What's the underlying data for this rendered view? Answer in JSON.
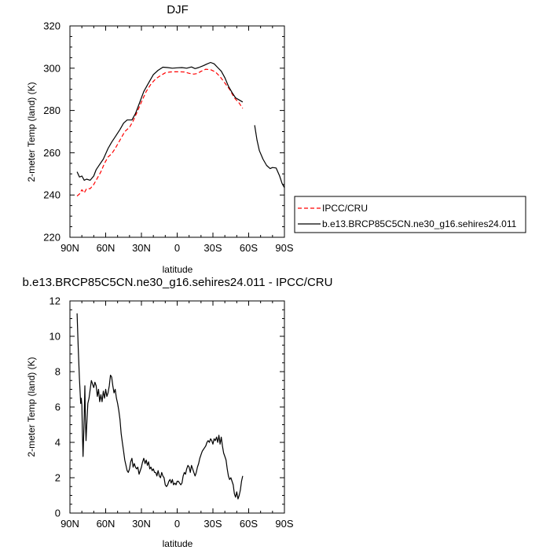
{
  "chart_data": [
    {
      "type": "line",
      "title": "DJF",
      "xlabel": "latitude",
      "ylabel": "2-meter Temp (land) (K)",
      "xlim": [
        90,
        -90
      ],
      "ylim": [
        220,
        320
      ],
      "xticks": [
        90,
        60,
        30,
        0,
        -30,
        -60,
        -90
      ],
      "xtick_labels": [
        "90N",
        "60N",
        "30N",
        "0",
        "30S",
        "60S",
        "90S"
      ],
      "yticks": [
        220,
        240,
        260,
        280,
        300,
        320
      ],
      "ytick_labels": [
        "220",
        "240",
        "260",
        "280",
        "300",
        "320"
      ],
      "legend": "right",
      "series": [
        {
          "name": "IPCC/CRU",
          "color": "#ff0000",
          "dash": "dashed",
          "segments": [
            [
              [
                84,
                239.5
              ],
              [
                82,
                240.5
              ],
              [
                80,
                242.5
              ],
              [
                78,
                241
              ],
              [
                76,
                243
              ],
              [
                73,
                243
              ],
              [
                70,
                245
              ],
              [
                67,
                248
              ],
              [
                64,
                251
              ],
              [
                61,
                255
              ],
              [
                58,
                258
              ],
              [
                55,
                259.5
              ],
              [
                52,
                262
              ],
              [
                48,
                266
              ],
              [
                44,
                270
              ],
              [
                40,
                272
              ],
              [
                37,
                275
              ],
              [
                33,
                280
              ],
              [
                30,
                284
              ],
              [
                26,
                289
              ],
              [
                22,
                292.5
              ],
              [
                18,
                295
              ],
              [
                14,
                296.5
              ],
              [
                10,
                297.8
              ],
              [
                6,
                298.2
              ],
              [
                2,
                298.3
              ],
              [
                -2,
                298.3
              ],
              [
                -6,
                298.2
              ],
              [
                -10,
                297.6
              ],
              [
                -14,
                297.2
              ],
              [
                -17,
                297.5
              ],
              [
                -20,
                298.5
              ],
              [
                -24,
                299.5
              ],
              [
                -28,
                299.3
              ],
              [
                -32,
                298.3
              ],
              [
                -36,
                296
              ],
              [
                -40,
                293
              ],
              [
                -44,
                290
              ],
              [
                -48,
                286
              ],
              [
                -52,
                283.5
              ],
              [
                -55,
                281
              ]
            ]
          ]
        },
        {
          "name": "b.e13.BRCP85C5CN.ne30_g16.sehires24.011",
          "color": "#000000",
          "dash": "solid",
          "segments": [
            [
              [
                84,
                251
              ],
              [
                82,
                248.5
              ],
              [
                80,
                249
              ],
              [
                78,
                247
              ],
              [
                76,
                247.5
              ],
              [
                73,
                247
              ],
              [
                70,
                249
              ],
              [
                68,
                252
              ],
              [
                65,
                254.5
              ],
              [
                62,
                257
              ],
              [
                58,
                262
              ],
              [
                55,
                265
              ],
              [
                52,
                267.5
              ],
              [
                48,
                271
              ],
              [
                45,
                274
              ],
              [
                42,
                275.5
              ],
              [
                38,
                275.5
              ],
              [
                35,
                278.5
              ],
              [
                32,
                283
              ],
              [
                28,
                289
              ],
              [
                24,
                293
              ],
              [
                20,
                297
              ],
              [
                16,
                299
              ],
              [
                12,
                300.5
              ],
              [
                8,
                300.3
              ],
              [
                4,
                300
              ],
              [
                0,
                300.2
              ],
              [
                -4,
                300.3
              ],
              [
                -8,
                300
              ],
              [
                -12,
                300.6
              ],
              [
                -15,
                299.8
              ],
              [
                -18,
                300.3
              ],
              [
                -22,
                301.2
              ],
              [
                -25,
                302
              ],
              [
                -28,
                302.7
              ],
              [
                -31,
                302.1
              ],
              [
                -34,
                300.3
              ],
              [
                -37,
                298.6
              ],
              [
                -40,
                295.5
              ],
              [
                -43,
                291.5
              ],
              [
                -46,
                288.5
              ],
              [
                -49,
                286
              ],
              [
                -52,
                285
              ],
              [
                -55,
                284
              ]
            ],
            [
              [
                -65,
                273
              ],
              [
                -67,
                266
              ],
              [
                -69,
                261
              ],
              [
                -72,
                257
              ],
              [
                -75,
                254
              ],
              [
                -78,
                252.5
              ],
              [
                -80,
                253
              ],
              [
                -83,
                252.8
              ],
              [
                -86,
                249
              ],
              [
                -88,
                245.5
              ],
              [
                -90,
                243.5
              ]
            ]
          ]
        }
      ]
    },
    {
      "type": "line",
      "title": "b.e13.BRCP85C5CN.ne30_g16.sehires24.011 - IPCC/CRU",
      "xlabel": "latitude",
      "ylabel": "2-meter Temp (land) (K)",
      "xlim": [
        90,
        -90
      ],
      "ylim": [
        0,
        12
      ],
      "xticks": [
        90,
        60,
        30,
        0,
        -30,
        -60,
        -90
      ],
      "xtick_labels": [
        "90N",
        "60N",
        "30N",
        "0",
        "30S",
        "60S",
        "90S"
      ],
      "yticks": [
        0,
        2,
        4,
        6,
        8,
        10,
        12
      ],
      "ytick_labels": [
        "0",
        "2",
        "4",
        "6",
        "8",
        "10",
        "12"
      ],
      "series": [
        {
          "color": "#000000",
          "dash": "solid",
          "segments": [
            [
              [
                84,
                11.3
              ],
              [
                83,
                9.3
              ],
              [
                82,
                7.6
              ],
              [
                81,
                6.2
              ],
              [
                80.5,
                6.5
              ],
              [
                80,
                6.1
              ],
              [
                79.5,
                4.5
              ],
              [
                79,
                3.2
              ],
              [
                78,
                5.5
              ],
              [
                77.5,
                7.2
              ],
              [
                77,
                5.3
              ],
              [
                76.5,
                4.1
              ],
              [
                76,
                4.8
              ],
              [
                75,
                6.2
              ],
              [
                74,
                6.5
              ],
              [
                73,
                7
              ],
              [
                72,
                7.5
              ],
              [
                71,
                7.3
              ],
              [
                70,
                7.1
              ],
              [
                69,
                7.4
              ],
              [
                68,
                7.2
              ],
              [
                67,
                6.6
              ],
              [
                66,
                7
              ],
              [
                65,
                6.3
              ],
              [
                64,
                6.7
              ],
              [
                63,
                6.3
              ],
              [
                62,
                6.9
              ],
              [
                61,
                6.5
              ],
              [
                60,
                7
              ],
              [
                59,
                6.6
              ],
              [
                58,
                6.8
              ],
              [
                57,
                7.2
              ],
              [
                56,
                7.8
              ],
              [
                55,
                7.7
              ],
              [
                54,
                7.2
              ],
              [
                53,
                6.8
              ],
              [
                52,
                7
              ],
              [
                51,
                6.5
              ],
              [
                50,
                6.2
              ],
              [
                49,
                5.8
              ],
              [
                48,
                5.3
              ],
              [
                47,
                4.5
              ],
              [
                46,
                4
              ],
              [
                45,
                3.5
              ],
              [
                44,
                3
              ],
              [
                43,
                2.7
              ],
              [
                42,
                2.4
              ],
              [
                41,
                2.3
              ],
              [
                40,
                2.5
              ],
              [
                39,
                2.9
              ],
              [
                38,
                3.1
              ],
              [
                37,
                2.6
              ],
              [
                36,
                2.8
              ],
              [
                35,
                2.6
              ],
              [
                34,
                2.5
              ],
              [
                33,
                2.6
              ],
              [
                32,
                2.2
              ],
              [
                31,
                2.4
              ],
              [
                30,
                2.6
              ],
              [
                29,
                2.9
              ],
              [
                28,
                3.1
              ],
              [
                27,
                2.8
              ],
              [
                26,
                3
              ],
              [
                25,
                2.7
              ],
              [
                24,
                2.9
              ],
              [
                23,
                2.5
              ],
              [
                22,
                2.6
              ],
              [
                21,
                2.4
              ],
              [
                20,
                2.5
              ],
              [
                19,
                2.3
              ],
              [
                18,
                2.3
              ],
              [
                17,
                2.1
              ],
              [
                16,
                2.4
              ],
              [
                15,
                2.1
              ],
              [
                14,
                2
              ],
              [
                13,
                2.3
              ],
              [
                12,
                2.1
              ],
              [
                11,
                2
              ],
              [
                10,
                1.6
              ],
              [
                9,
                1.5
              ],
              [
                8,
                1.6
              ],
              [
                7,
                1.8
              ],
              [
                6,
                1.9
              ],
              [
                5,
                1.7
              ],
              [
                4,
                1.9
              ],
              [
                3,
                1.6
              ],
              [
                2,
                1.7
              ],
              [
                1,
                1.6
              ],
              [
                0,
                1.8
              ],
              [
                -1,
                1.8
              ],
              [
                -2,
                1.7
              ],
              [
                -3,
                1.6
              ],
              [
                -4,
                1.7
              ],
              [
                -5,
                2.1
              ],
              [
                -6,
                2.3
              ],
              [
                -7,
                2.2
              ],
              [
                -8,
                2.5
              ],
              [
                -9,
                2.7
              ],
              [
                -10,
                2.6
              ],
              [
                -11,
                2.3
              ],
              [
                -12,
                2.7
              ],
              [
                -13,
                2.5
              ],
              [
                -14,
                2.3
              ],
              [
                -15,
                2.1
              ],
              [
                -16,
                2.3
              ],
              [
                -17,
                2.6
              ],
              [
                -18,
                2.8
              ],
              [
                -19,
                3.1
              ],
              [
                -20,
                3.3
              ],
              [
                -21,
                3.5
              ],
              [
                -22,
                3.6
              ],
              [
                -23,
                3.7
              ],
              [
                -24,
                3.8
              ],
              [
                -25,
                4
              ],
              [
                -26,
                4.1
              ],
              [
                -27,
                4
              ],
              [
                -28,
                4.2
              ],
              [
                -29,
                4.1
              ],
              [
                -30,
                3.9
              ],
              [
                -31,
                4.2
              ],
              [
                -32,
                4.1
              ],
              [
                -33,
                4.3
              ],
              [
                -34,
                4
              ],
              [
                -35,
                4.4
              ],
              [
                -36,
                3.9
              ],
              [
                -37,
                4.3
              ],
              [
                -38,
                3.8
              ],
              [
                -39,
                3.4
              ],
              [
                -40,
                3.2
              ],
              [
                -41,
                3
              ],
              [
                -42,
                2.5
              ],
              [
                -43,
                2.1
              ],
              [
                -44,
                1.9
              ],
              [
                -45,
                2
              ],
              [
                -46,
                1.8
              ],
              [
                -47,
                1.6
              ],
              [
                -48,
                1.1
              ],
              [
                -49,
                0.9
              ],
              [
                -50,
                1.2
              ],
              [
                -51,
                0.8
              ],
              [
                -52,
                1
              ],
              [
                -53,
                1.3
              ],
              [
                -54,
                1.8
              ],
              [
                -55,
                2.1
              ]
            ]
          ]
        }
      ]
    }
  ]
}
